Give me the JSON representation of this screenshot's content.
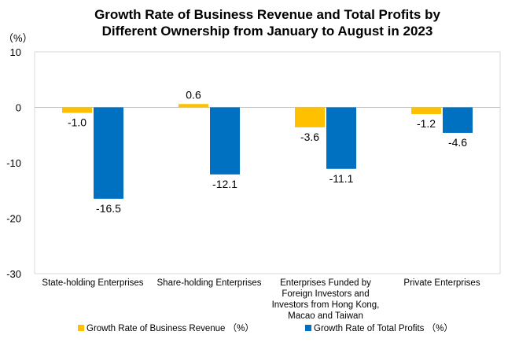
{
  "chart_data": {
    "type": "bar",
    "title_lines": [
      "Growth Rate of Business Revenue and Total Profits by",
      "Different Ownership from January to August in 2023"
    ],
    "unit_label": "（%）",
    "ylim": [
      -30,
      10
    ],
    "yticks": [
      10,
      0,
      -10,
      -20,
      -30
    ],
    "grid": false,
    "legend_position": "bottom",
    "categories": [
      [
        "State-holding Enterprises"
      ],
      [
        "Share-holding Enterprises"
      ],
      [
        "Enterprises Funded by",
        "Foreign Investors and",
        "Investors from Hong Kong,",
        "Macao and Taiwan"
      ],
      [
        "Private Enterprises"
      ]
    ],
    "series": [
      {
        "name": "Growth Rate of Business Revenue （%）",
        "color": "#FFC000",
        "values": [
          -1.0,
          0.6,
          -3.6,
          -1.2
        ],
        "labels": [
          "-1.0",
          "0.6",
          "-3.6",
          "-1.2"
        ]
      },
      {
        "name": "Growth Rate of Total Profits （%）",
        "color": "#0070C0",
        "values": [
          -16.5,
          -12.1,
          -11.1,
          -4.6
        ],
        "labels": [
          "-16.5",
          "-12.1",
          "-11.1",
          "-4.6"
        ]
      }
    ]
  }
}
